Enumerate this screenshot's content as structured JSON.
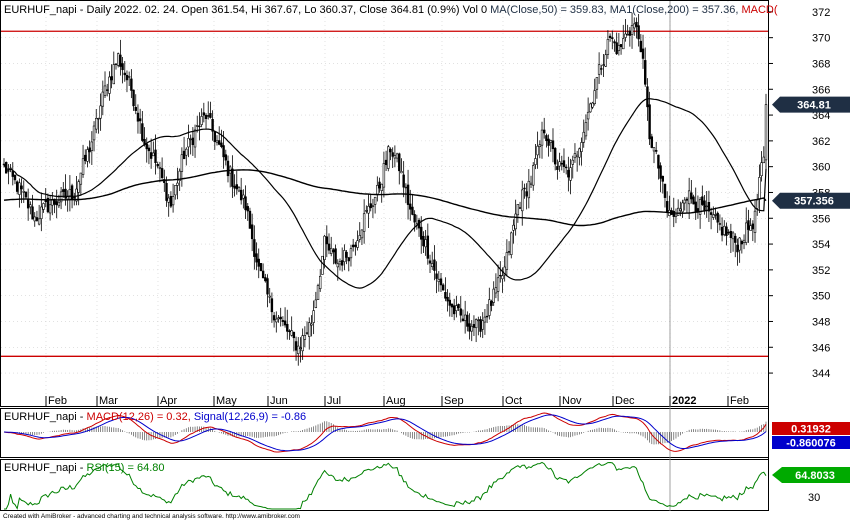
{
  "chart_data": {
    "type": "candlestick",
    "symbol": "EURHUF_napi",
    "colors": {
      "price": "#000000",
      "ma": "#000000",
      "hline": "#cc0000",
      "macd": "#cc0000",
      "signal": "#0000cc",
      "rsi": "#008000",
      "badge_dark": "#1f2f44",
      "badge_blue": "#0000cc",
      "badge_red": "#cc0000",
      "badge_green": "#00aa00"
    },
    "price_panel": {
      "title_prefix": "EURHUF_napi - Daily 2022. 02. 24. Open 361.54, Hi 367.67, Lo 360.37, Close 364.81 (0.9%) Vol 0 ",
      "title_ma50": "MA(Close,50) = 359.83, ",
      "title_ma200": "MA1(Close,200) = 357.36, ",
      "title_macd": "MACD(",
      "last_close": 364.81,
      "ma50_last": 359.83,
      "ma200_last": 357.36,
      "badge_close": "364.81",
      "badge_ma200": "357.356",
      "ylim": [
        342.3,
        372.3
      ],
      "yticks": [
        "344",
        "346",
        "348",
        "350",
        "352",
        "354",
        "356",
        "358",
        "360",
        "362",
        "364",
        "366",
        "368",
        "370",
        "372"
      ],
      "horizontal_lines": [
        370.5,
        345.3
      ],
      "ohlc": {
        "days": 290,
        "anchors_close": [
          [
            0,
            360
          ],
          [
            8,
            358
          ],
          [
            14,
            356
          ],
          [
            20,
            357
          ],
          [
            26,
            357.5
          ],
          [
            32,
            358
          ],
          [
            40,
            362
          ],
          [
            46,
            366
          ],
          [
            52,
            368.5
          ],
          [
            58,
            366
          ],
          [
            64,
            362
          ],
          [
            70,
            360
          ],
          [
            76,
            357
          ],
          [
            82,
            361
          ],
          [
            88,
            363
          ],
          [
            92,
            364
          ],
          [
            98,
            361.5
          ],
          [
            104,
            359
          ],
          [
            110,
            357
          ],
          [
            116,
            352
          ],
          [
            122,
            349
          ],
          [
            128,
            347.5
          ],
          [
            134,
            346
          ],
          [
            140,
            348
          ],
          [
            146,
            354
          ],
          [
            152,
            352.5
          ],
          [
            158,
            353.5
          ],
          [
            164,
            356
          ],
          [
            170,
            358
          ],
          [
            176,
            361.5
          ],
          [
            180,
            360
          ],
          [
            186,
            356
          ],
          [
            192,
            354
          ],
          [
            198,
            351
          ],
          [
            204,
            349
          ],
          [
            210,
            348
          ],
          [
            216,
            347.5
          ],
          [
            222,
            349.5
          ],
          [
            228,
            352
          ],
          [
            234,
            357
          ],
          [
            240,
            359
          ],
          [
            246,
            363
          ],
          [
            252,
            360
          ],
          [
            258,
            359.5
          ],
          [
            264,
            363
          ],
          [
            268,
            365.5
          ],
          [
            272,
            368
          ],
          [
            276,
            370
          ],
          [
            280,
            369
          ],
          [
            284,
            370.5
          ],
          [
            287,
            371
          ],
          [
            290,
            369.5
          ],
          [
            294,
            362.5
          ],
          [
            298,
            360
          ],
          [
            302,
            356.5
          ],
          [
            306,
            356
          ],
          [
            310,
            358
          ],
          [
            316,
            357
          ],
          [
            322,
            356
          ],
          [
            328,
            355
          ],
          [
            334,
            354
          ],
          [
            338,
            355
          ],
          [
            342,
            356
          ],
          [
            344,
            359
          ],
          [
            346,
            360.37
          ],
          [
            347,
            364.81
          ]
        ],
        "days_total": 348
      }
    },
    "months": [
      "Feb",
      "Mar",
      "Apr",
      "May",
      "Jun",
      "Jul",
      "Aug",
      "Sep",
      "Oct",
      "Nov",
      "Dec",
      "2022",
      "Feb"
    ],
    "macd_panel": {
      "label_prefix": "EURHUF_napi - ",
      "label_macd": "MACD(12,26) = 0.32, ",
      "label_signal": "Signal(12,26,9) = -0.86",
      "badge_macd": "0.31932",
      "badge_signal": "-0.860076"
    },
    "rsi_panel": {
      "label_prefix": "EURHUF_napi - ",
      "label_rsi": "RSI(15) = 64.80",
      "value": 64.8,
      "badge_rsi": "64.8033",
      "yticks": [
        "30"
      ]
    },
    "footer": "Created with AmiBroker - advanced charting and technical analysis software. http://www.amibroker.com"
  }
}
